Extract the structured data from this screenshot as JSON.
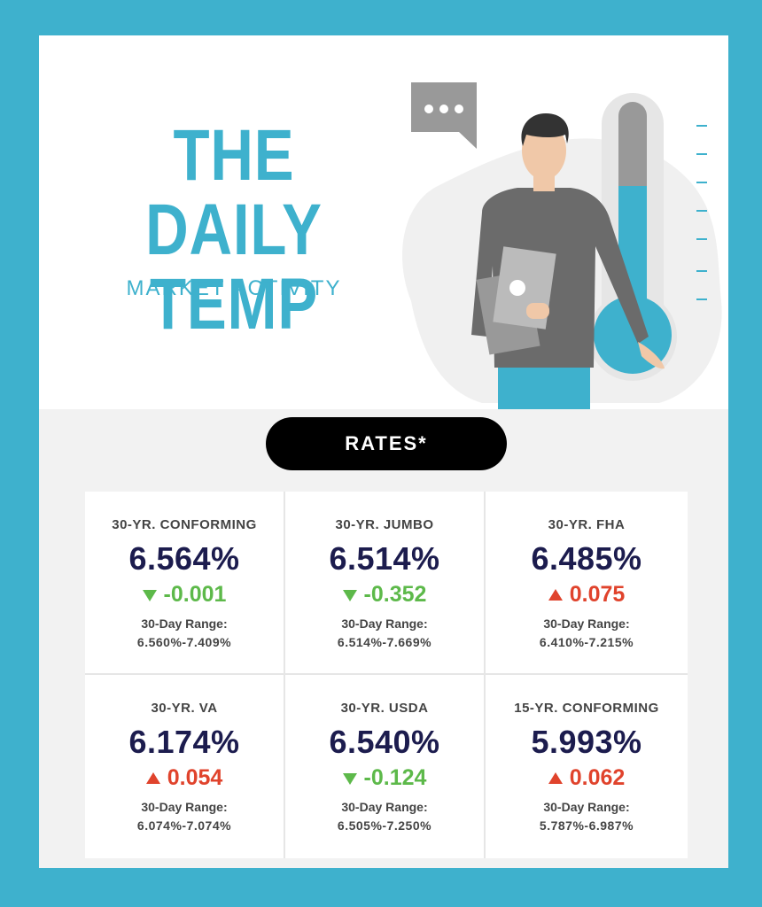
{
  "header": {
    "title_line1": "THE DAILY",
    "title_line2": "TEMP",
    "subtitle": "MARKET ACTIVITY"
  },
  "rates_label": "RATES*",
  "colors": {
    "accent": "#3eb1cd",
    "down": "#5db94a",
    "up": "#e0432c",
    "rate_text": "#1c1c4e"
  },
  "icons": {
    "speech_bubble": "speech-bubble-icon",
    "thermometer": "thermometer-icon",
    "down_arrow": "triangle-down-icon",
    "up_arrow": "triangle-up-icon"
  },
  "rates": [
    {
      "label": "30-YR. CONFORMING",
      "rate": "6.564%",
      "direction": "down",
      "change": "-0.001",
      "range_label": "30-Day Range:",
      "range": "6.560%-7.409%"
    },
    {
      "label": "30-YR. JUMBO",
      "rate": "6.514%",
      "direction": "down",
      "change": "-0.352",
      "range_label": "30-Day Range:",
      "range": "6.514%-7.669%"
    },
    {
      "label": "30-YR. FHA",
      "rate": "6.485%",
      "direction": "up",
      "change": "0.075",
      "range_label": "30-Day Range:",
      "range": "6.410%-7.215%"
    },
    {
      "label": "30-YR. VA",
      "rate": "6.174%",
      "direction": "up",
      "change": "0.054",
      "range_label": "30-Day Range:",
      "range": "6.074%-7.074%"
    },
    {
      "label": "30-YR. USDA",
      "rate": "6.540%",
      "direction": "down",
      "change": "-0.124",
      "range_label": "30-Day Range:",
      "range": "6.505%-7.250%"
    },
    {
      "label": "15-YR. CONFORMING",
      "rate": "5.993%",
      "direction": "up",
      "change": "0.062",
      "range_label": "30-Day Range:",
      "range": "5.787%-6.987%"
    }
  ]
}
